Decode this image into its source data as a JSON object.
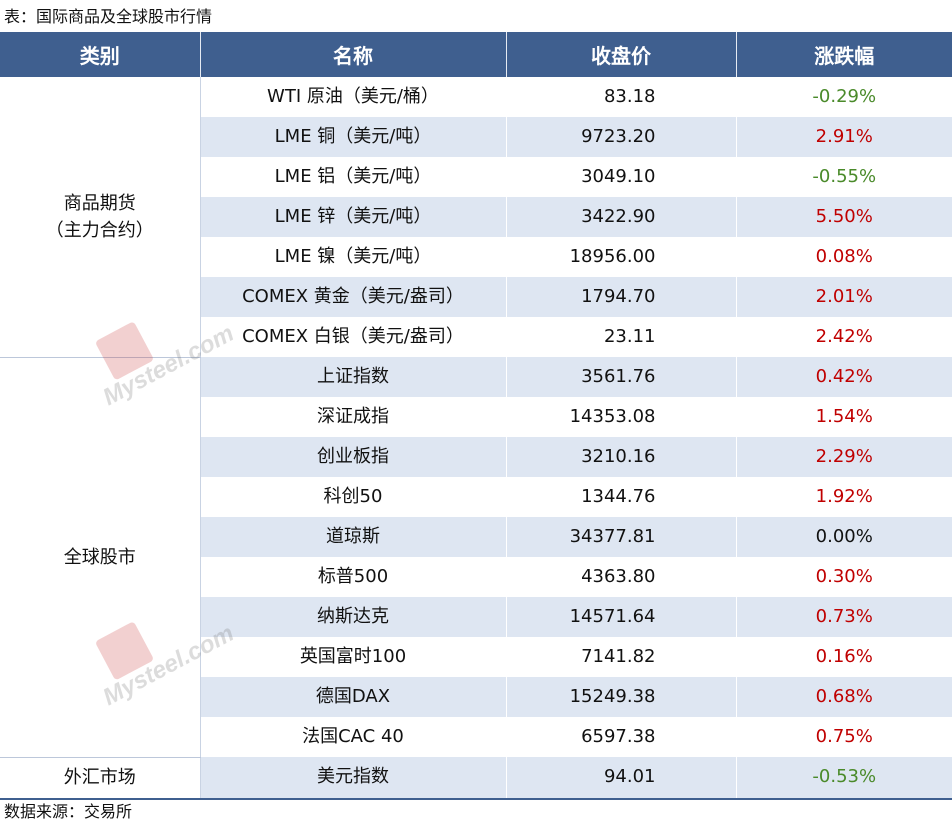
{
  "caption": "表：国际商品及全球股市行情",
  "source": "数据来源：交易所",
  "watermark_text": "Mysteel.com",
  "colors": {
    "header_bg": "#3f5f8f",
    "row_alt_bg": "#dee6f2",
    "up": "#c00000",
    "down": "#4a8a2a"
  },
  "headers": {
    "category": "类别",
    "name": "名称",
    "close": "收盘价",
    "change": "涨跌幅"
  },
  "categories": {
    "commodities_line1": "商品期货",
    "commodities_line2": "（主力合约）",
    "equities": "全球股市",
    "fx": "外汇市场"
  },
  "rows": [
    {
      "name": "WTI 原油（美元/桶）",
      "close": "83.18",
      "change": "-0.29%"
    },
    {
      "name": "LME 铜（美元/吨）",
      "close": "9723.20",
      "change": "2.91%"
    },
    {
      "name": "LME 铝（美元/吨）",
      "close": "3049.10",
      "change": "-0.55%"
    },
    {
      "name": "LME 锌（美元/吨）",
      "close": "3422.90",
      "change": "5.50%"
    },
    {
      "name": "LME 镍（美元/吨）",
      "close": "18956.00",
      "change": "0.08%"
    },
    {
      "name": "COMEX 黄金（美元/盎司）",
      "close": "1794.70",
      "change": "2.01%"
    },
    {
      "name": "COMEX 白银（美元/盎司）",
      "close": "23.11",
      "change": "2.42%"
    },
    {
      "name": "上证指数",
      "close": "3561.76",
      "change": "0.42%"
    },
    {
      "name": "深证成指",
      "close": "14353.08",
      "change": "1.54%"
    },
    {
      "name": "创业板指",
      "close": "3210.16",
      "change": "2.29%"
    },
    {
      "name": "科创50",
      "close": "1344.76",
      "change": "1.92%"
    },
    {
      "name": "道琼斯",
      "close": "34377.81",
      "change": "0.00%"
    },
    {
      "name": "标普500",
      "close": "4363.80",
      "change": "0.30%"
    },
    {
      "name": "纳斯达克",
      "close": "14571.64",
      "change": "0.73%"
    },
    {
      "name": "英国富时100",
      "close": "7141.82",
      "change": "0.16%"
    },
    {
      "name": "德国DAX",
      "close": "15249.38",
      "change": "0.68%"
    },
    {
      "name": "法国CAC 40",
      "close": "6597.38",
      "change": "0.75%"
    },
    {
      "name": "美元指数",
      "close": "94.01",
      "change": "-0.53%"
    }
  ]
}
